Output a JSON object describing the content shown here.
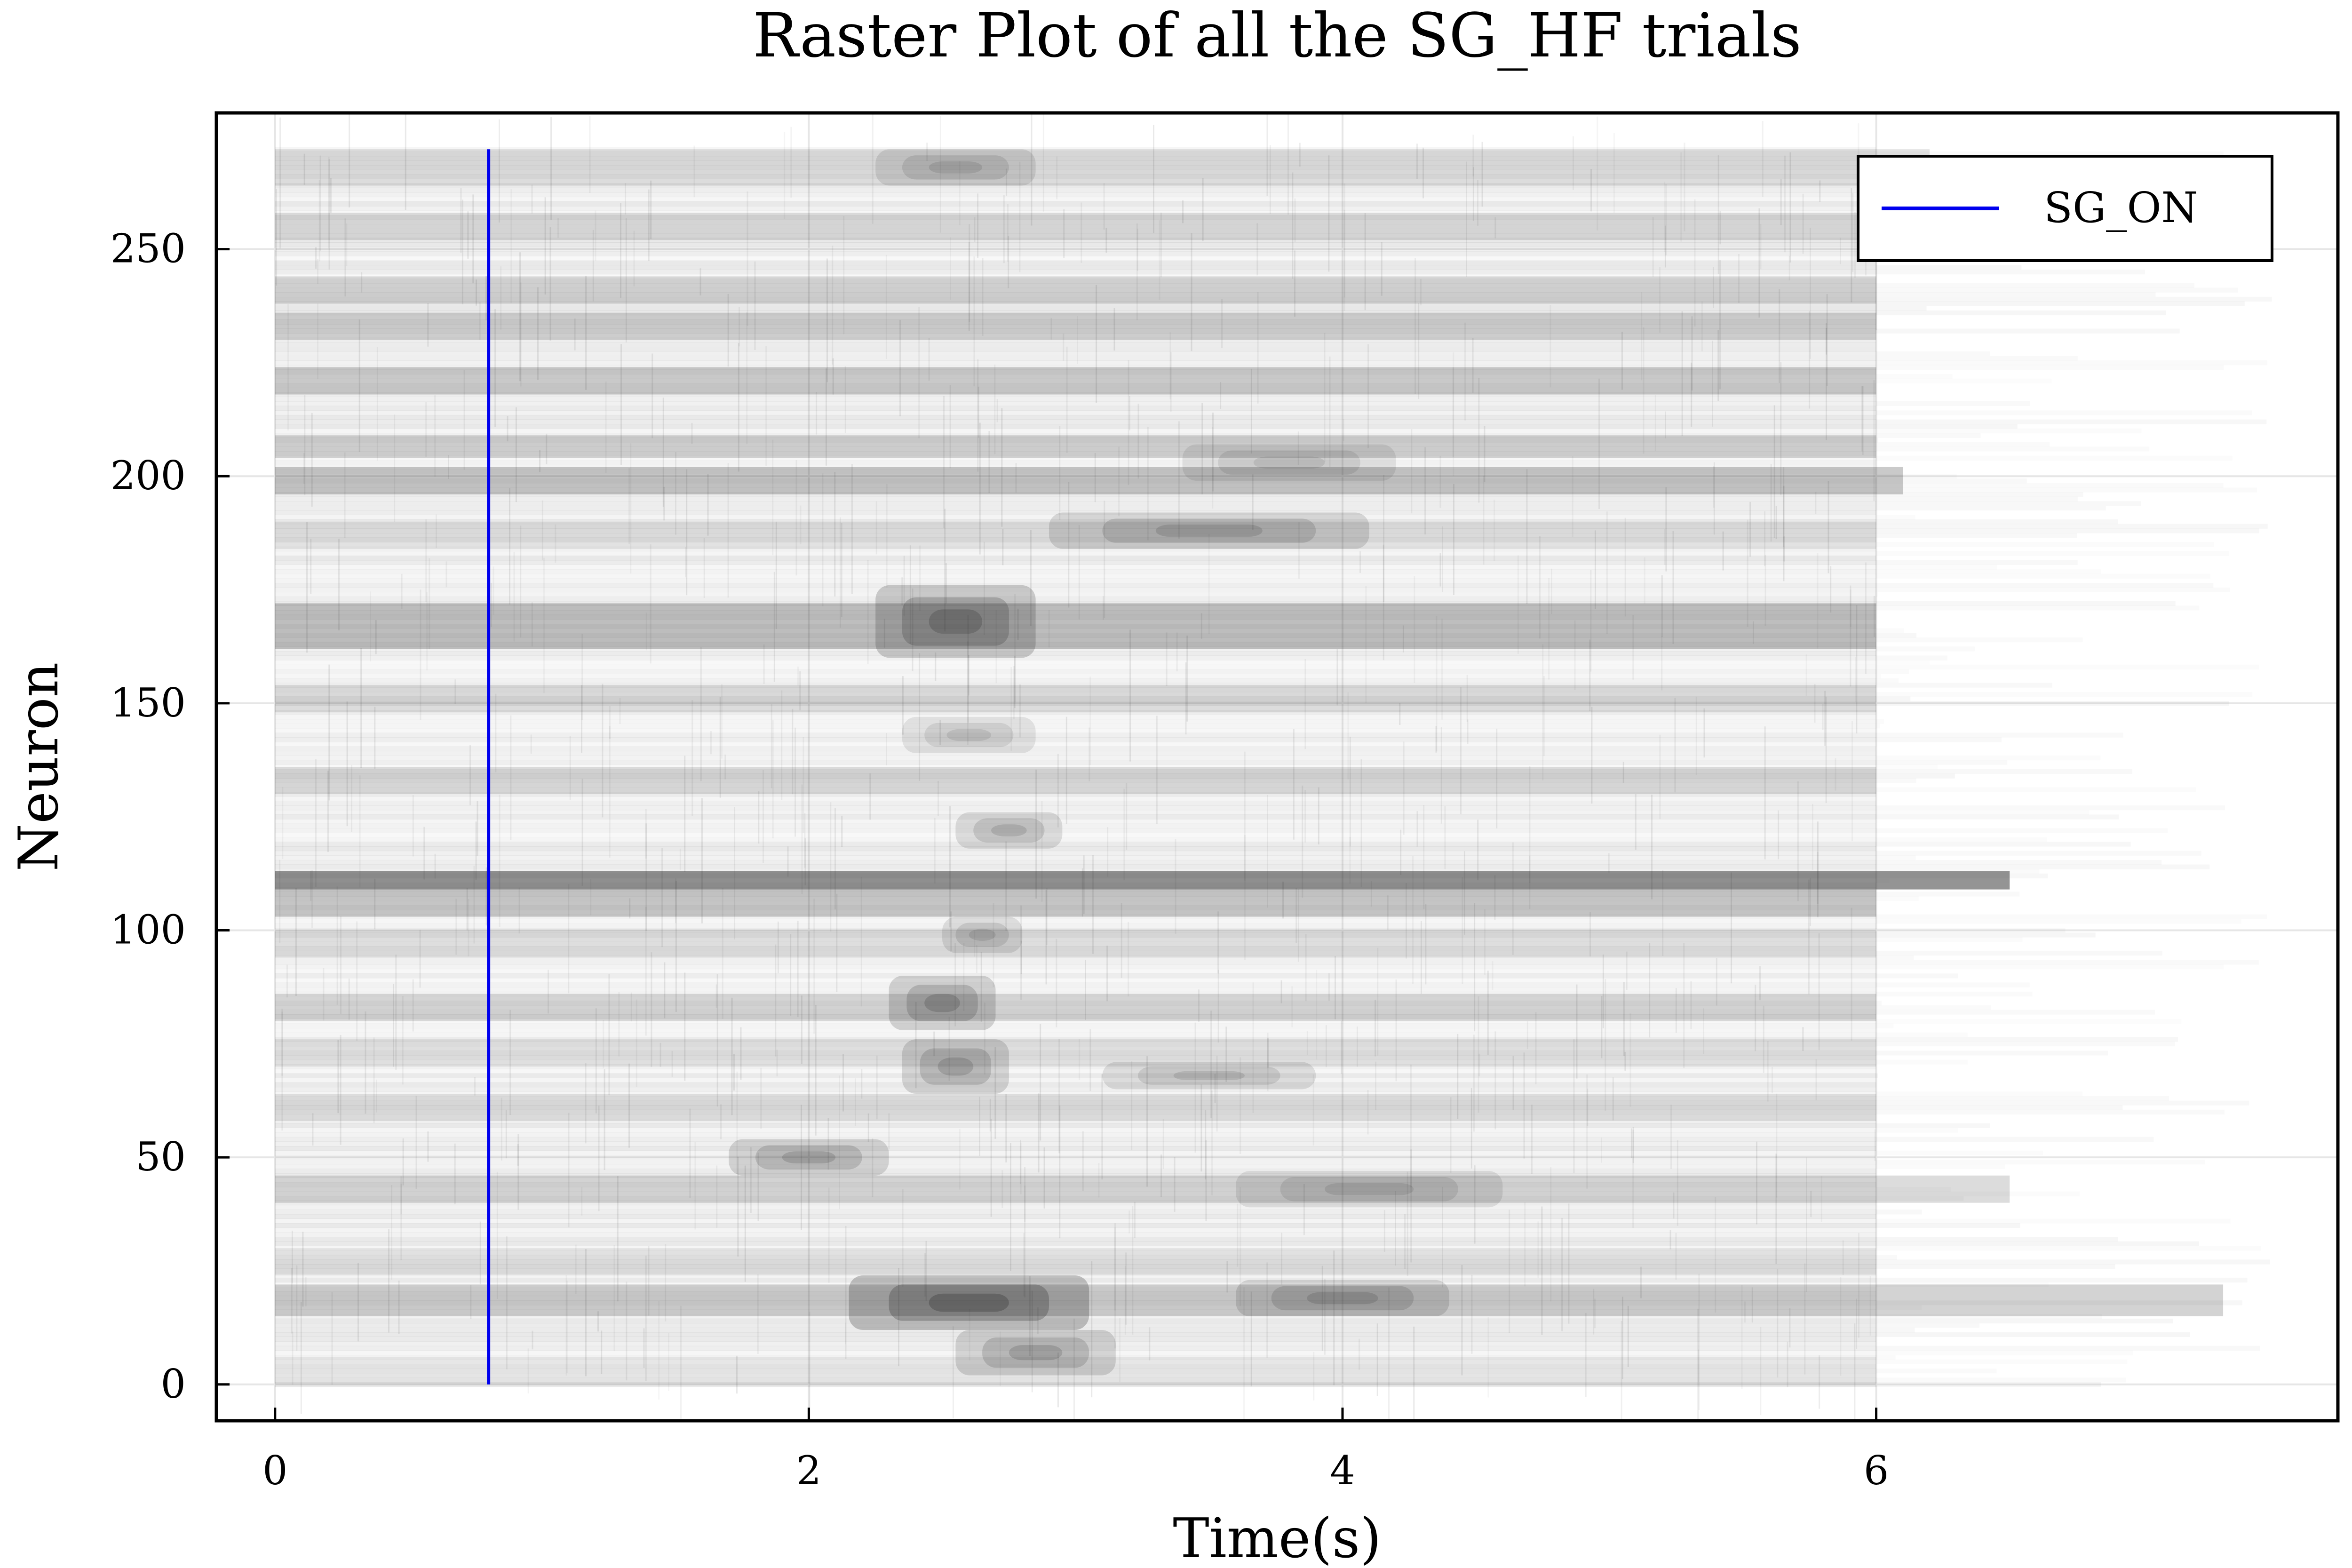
{
  "chart_data": {
    "type": "heatmap",
    "title": "Raster Plot of all the SG_HF trials",
    "xlabel": "Time(s)",
    "ylabel": "Neuron",
    "xlim": [
      -0.22,
      7.73
    ],
    "ylim": [
      -8,
      280
    ],
    "x_ticks": [
      0,
      2,
      4,
      6
    ],
    "y_ticks": [
      0,
      50,
      100,
      150,
      200,
      250
    ],
    "grid": true,
    "legend_position": "top-right",
    "colors": {
      "raster": "#1a1a1a",
      "event_line": "#0000ee",
      "grid": "#e6e6e6",
      "axes": "#000000"
    },
    "neuron_range": [
      0,
      272
    ],
    "time_range": [
      0,
      7.5
    ],
    "typical_recording_end_s": 6.0,
    "event_lines": [
      {
        "name": "SG_ON",
        "x": 0.8,
        "y_from": 0,
        "y_to": 272
      }
    ],
    "raster_bands": [
      {
        "neurons": [
          109,
          113
        ],
        "t_start": 0.0,
        "t_end": 6.5,
        "intensity": 0.85
      },
      {
        "neurons": [
          103,
          109
        ],
        "t_start": 0.0,
        "t_end": 6.0,
        "intensity": 0.4
      },
      {
        "neurons": [
          162,
          172
        ],
        "t_start": 0.0,
        "t_end": 6.0,
        "intensity": 0.45
      },
      {
        "neurons": [
          196,
          202
        ],
        "t_start": 0.0,
        "t_end": 6.1,
        "intensity": 0.42
      },
      {
        "neurons": [
          204,
          209
        ],
        "t_start": 0.0,
        "t_end": 6.0,
        "intensity": 0.32
      },
      {
        "neurons": [
          218,
          224
        ],
        "t_start": 0.0,
        "t_end": 6.0,
        "intensity": 0.38
      },
      {
        "neurons": [
          230,
          236
        ],
        "t_start": 0.0,
        "t_end": 6.0,
        "intensity": 0.3
      },
      {
        "neurons": [
          238,
          244
        ],
        "t_start": 0.0,
        "t_end": 6.0,
        "intensity": 0.28
      },
      {
        "neurons": [
          252,
          258
        ],
        "t_start": 0.0,
        "t_end": 6.2,
        "intensity": 0.25
      },
      {
        "neurons": [
          264,
          272
        ],
        "t_start": 0.0,
        "t_end": 6.2,
        "intensity": 0.22
      },
      {
        "neurons": [
          15,
          22
        ],
        "t_start": 0.0,
        "t_end": 7.3,
        "intensity": 0.35
      },
      {
        "neurons": [
          40,
          46
        ],
        "t_start": 0.0,
        "t_end": 6.5,
        "intensity": 0.28
      },
      {
        "neurons": [
          80,
          86
        ],
        "t_start": 0.0,
        "t_end": 6.0,
        "intensity": 0.27
      },
      {
        "neurons": [
          130,
          136
        ],
        "t_start": 0.0,
        "t_end": 6.0,
        "intensity": 0.24
      },
      {
        "neurons": [
          148,
          154
        ],
        "t_start": 0.0,
        "t_end": 6.0,
        "intensity": 0.22
      },
      {
        "neurons": [
          58,
          64
        ],
        "t_start": 0.0,
        "t_end": 6.0,
        "intensity": 0.2
      },
      {
        "neurons": [
          24,
          30
        ],
        "t_start": 0.0,
        "t_end": 6.0,
        "intensity": 0.15
      },
      {
        "neurons": [
          0,
          6
        ],
        "t_start": 0.0,
        "t_end": 6.0,
        "intensity": 0.12
      },
      {
        "neurons": [
          94,
          100
        ],
        "t_start": 0.0,
        "t_end": 6.0,
        "intensity": 0.18
      },
      {
        "neurons": [
          184,
          190
        ],
        "t_start": 0.0,
        "t_end": 6.0,
        "intensity": 0.16
      },
      {
        "neurons": [
          70,
          76
        ],
        "t_start": 0.0,
        "t_end": 6.0,
        "intensity": 0.17
      }
    ],
    "raster_hotspots": [
      {
        "t": 2.6,
        "neuron": 18,
        "dt": 0.45,
        "dn": 6,
        "intensity": 0.85
      },
      {
        "t": 2.85,
        "neuron": 7,
        "dt": 0.3,
        "dn": 5,
        "intensity": 0.55
      },
      {
        "t": 2.5,
        "neuron": 84,
        "dt": 0.2,
        "dn": 6,
        "intensity": 0.6
      },
      {
        "t": 2.55,
        "neuron": 70,
        "dt": 0.2,
        "dn": 6,
        "intensity": 0.55
      },
      {
        "t": 2.55,
        "neuron": 168,
        "dt": 0.3,
        "dn": 8,
        "intensity": 0.7
      },
      {
        "t": 2.0,
        "neuron": 50,
        "dt": 0.3,
        "dn": 4,
        "intensity": 0.55
      },
      {
        "t": 3.5,
        "neuron": 188,
        "dt": 0.6,
        "dn": 4,
        "intensity": 0.5
      },
      {
        "t": 4.0,
        "neuron": 19,
        "dt": 0.4,
        "dn": 4,
        "intensity": 0.5
      },
      {
        "t": 3.5,
        "neuron": 68,
        "dt": 0.4,
        "dn": 3,
        "intensity": 0.4
      },
      {
        "t": 2.75,
        "neuron": 122,
        "dt": 0.2,
        "dn": 4,
        "intensity": 0.45
      },
      {
        "t": 2.65,
        "neuron": 99,
        "dt": 0.15,
        "dn": 4,
        "intensity": 0.4
      },
      {
        "t": 2.55,
        "neuron": 268,
        "dt": 0.3,
        "dn": 4,
        "intensity": 0.4
      },
      {
        "t": 4.1,
        "neuron": 43,
        "dt": 0.5,
        "dn": 4,
        "intensity": 0.38
      },
      {
        "t": 3.8,
        "neuron": 203,
        "dt": 0.4,
        "dn": 4,
        "intensity": 0.35
      },
      {
        "t": 2.6,
        "neuron": 143,
        "dt": 0.25,
        "dn": 4,
        "intensity": 0.35
      }
    ]
  },
  "legend": {
    "items": [
      {
        "label": "SG_ON",
        "color": "#0000ee"
      }
    ]
  }
}
